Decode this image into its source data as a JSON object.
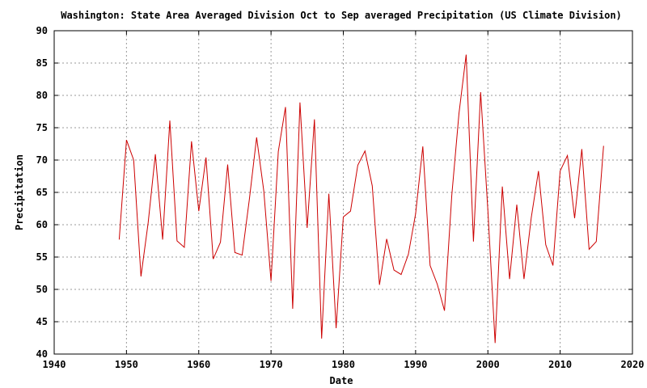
{
  "chart_data": {
    "type": "line",
    "title": "Washington: State Area Averaged Division  Oct to Sep averaged Precipitation  (US Climate Division)",
    "xlabel": "Date",
    "ylabel": "Precipitation",
    "xlim": [
      1940,
      2020
    ],
    "ylim": [
      40,
      90
    ],
    "xticks": [
      1940,
      1950,
      1960,
      1970,
      1980,
      1990,
      2000,
      2010,
      2020
    ],
    "yticks": [
      40,
      45,
      50,
      55,
      60,
      65,
      70,
      75,
      80,
      85,
      90
    ],
    "grid": true,
    "line_color": "#cc0000",
    "series": [
      {
        "x": [
          1949,
          1950,
          1951,
          1952,
          1953,
          1954,
          1955,
          1956,
          1957,
          1958,
          1959,
          1960,
          1961,
          1962,
          1963,
          1964,
          1965,
          1966,
          1967,
          1968,
          1969,
          1970,
          1971,
          1972,
          1973,
          1974,
          1975,
          1976,
          1977,
          1978,
          1979,
          1980,
          1981,
          1982,
          1983,
          1984,
          1985,
          1986,
          1987,
          1988,
          1989,
          1990,
          1991,
          1992,
          1993,
          1994,
          1995,
          1996,
          1997,
          1998,
          1999,
          2000,
          2001,
          2002,
          2003,
          2004,
          2005,
          2006,
          2007,
          2008,
          2009,
          2010,
          2011,
          2012,
          2013,
          2014,
          2015,
          2016
        ],
        "values": [
          57.7,
          73.1,
          70.0,
          52.0,
          60.3,
          70.9,
          57.7,
          76.1,
          57.5,
          56.5,
          72.9,
          62.1,
          70.4,
          54.7,
          57.3,
          69.3,
          55.7,
          55.3,
          63.9,
          73.5,
          65.2,
          51.3,
          71.3,
          78.2,
          47.0,
          78.9,
          59.5,
          76.3,
          42.4,
          64.8,
          44.0,
          61.2,
          62.1,
          69.2,
          71.4,
          66.0,
          50.7,
          57.8,
          53.0,
          52.3,
          55.4,
          61.7,
          72.1,
          53.7,
          50.8,
          46.7,
          64.5,
          77.2,
          86.3,
          57.4,
          80.5,
          62.1,
          41.7,
          65.9,
          51.6,
          63.1,
          51.6,
          61.1,
          68.3,
          56.9,
          53.7,
          68.3,
          70.7,
          61.0,
          71.7,
          56.2,
          57.4,
          72.2
        ]
      }
    ]
  }
}
